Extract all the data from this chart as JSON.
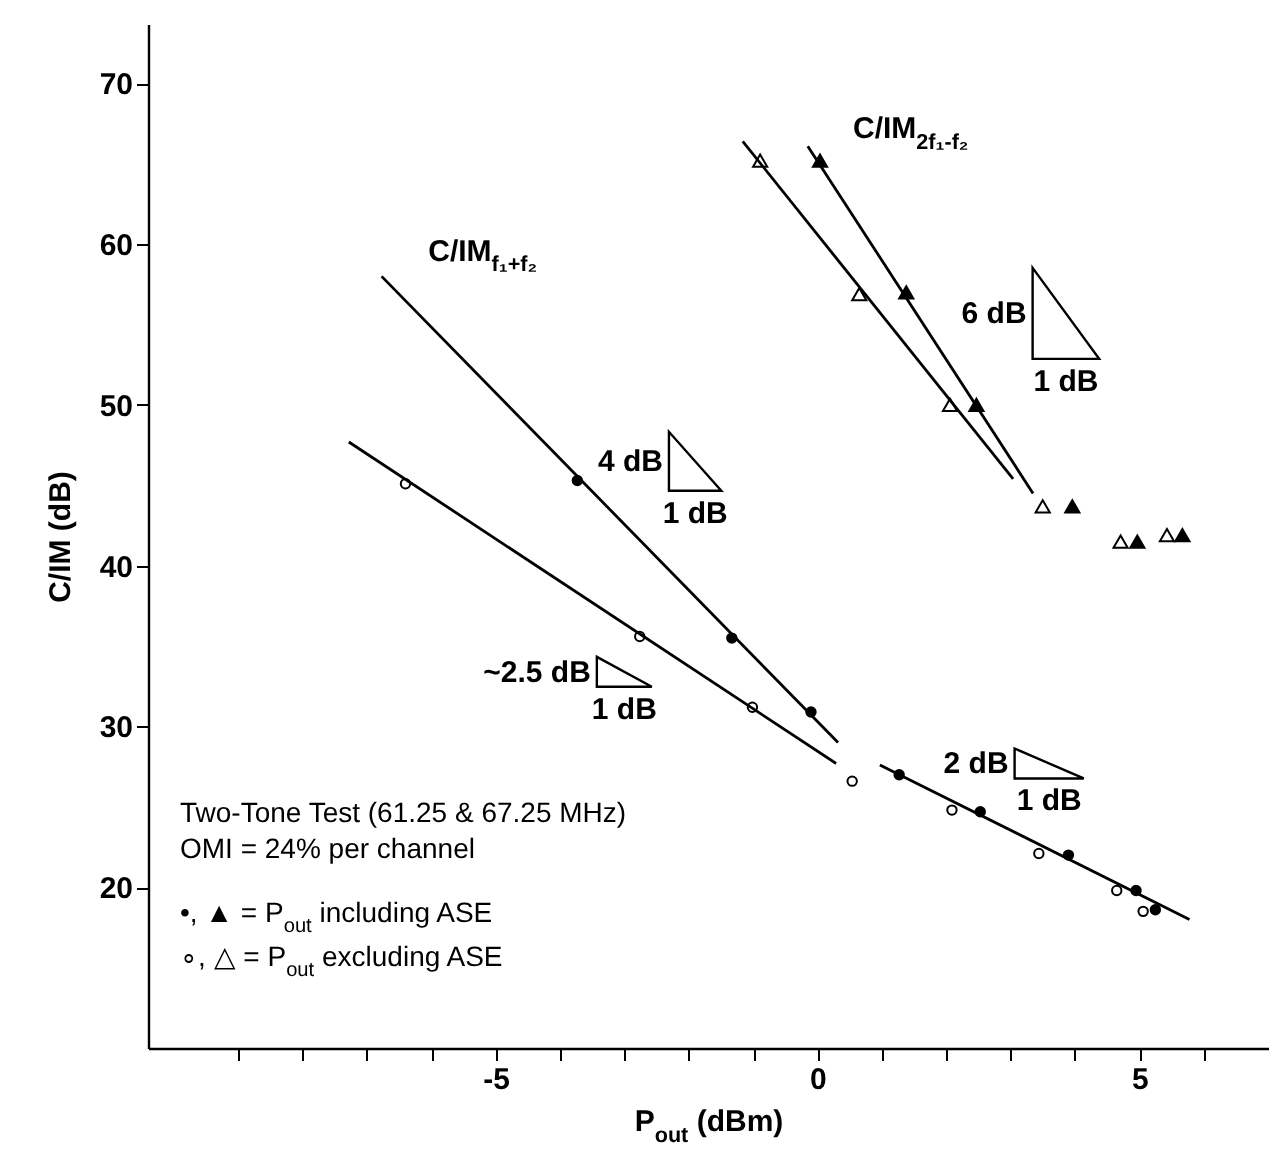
{
  "chart_data": {
    "type": "scatter",
    "xlabel": "P$_{out}$ (dBm)",
    "ylabel": "C/IM (dB)",
    "xlim": [
      -10.4,
      7
    ],
    "ylim": [
      10,
      73.7
    ],
    "xticks": [
      {
        "value": -9,
        "label": null
      },
      {
        "value": -8,
        "label": null
      },
      {
        "value": -7,
        "label": null
      },
      {
        "value": -6,
        "label": null
      },
      -5,
      {
        "value": -4,
        "label": null
      },
      {
        "value": -3,
        "label": null
      },
      {
        "value": -2,
        "label": null
      },
      {
        "value": -1,
        "label": null
      },
      0,
      {
        "value": 1,
        "label": null
      },
      {
        "value": 2,
        "label": null
      },
      {
        "value": 3,
        "label": null
      },
      {
        "value": 4,
        "label": null
      },
      5,
      {
        "value": 6,
        "label": null
      }
    ],
    "yticks": [
      20,
      30,
      40,
      50,
      60,
      70
    ],
    "grid": false,
    "series": [
      {
        "type": "scatter",
        "marker": "circle",
        "color": "#000000",
        "x": [
          -3.73,
          -1.33,
          -0.1,
          1.27,
          2.53,
          3.9,
          4.95,
          5.25
        ],
        "values": [
          45.3,
          35.5,
          30.9,
          27.0,
          24.7,
          22.0,
          19.8,
          18.6
        ]
      },
      {
        "type": "scatter",
        "marker": "circle",
        "color": "#ffffff",
        "x": [
          -6.4,
          -2.76,
          -1.01,
          0.54,
          2.09,
          3.44,
          4.65,
          5.06
        ],
        "values": [
          45.1,
          35.6,
          31.2,
          26.6,
          24.8,
          22.1,
          19.8,
          18.5
        ]
      },
      {
        "type": "scatter",
        "marker": "triangle",
        "color": "#000000",
        "x": [
          0.04,
          1.38,
          2.47,
          3.96,
          4.97,
          5.67
        ],
        "values": [
          65.2,
          57.0,
          50.0,
          43.7,
          41.5,
          41.9
        ]
      },
      {
        "type": "scatter",
        "marker": "triangle",
        "color": "#ffffff",
        "x": [
          -0.89,
          0.65,
          2.06,
          3.5,
          4.71,
          5.43
        ],
        "values": [
          65.2,
          56.9,
          50.0,
          43.7,
          41.5,
          41.9
        ]
      },
      {
        "type": "line",
        "color": "#000000",
        "x": [
          -6.77,
          0.32
        ],
        "values": [
          58.0,
          29.0
        ]
      },
      {
        "type": "line",
        "color": "#000000",
        "x": [
          -7.28,
          0.29
        ],
        "values": [
          47.7,
          27.7
        ]
      },
      {
        "type": "line",
        "color": "#000000",
        "x": [
          0.97,
          5.78
        ],
        "values": [
          27.6,
          18.0
        ]
      },
      {
        "type": "line",
        "color": "#000000",
        "x": [
          -0.15,
          3.35
        ],
        "values": [
          66.1,
          44.5
        ]
      },
      {
        "type": "line",
        "color": "#000000",
        "x": [
          -1.16,
          3.04
        ],
        "values": [
          66.4,
          45.4
        ]
      }
    ],
    "annotations": [
      "C/IM$_{f₁+f₂}$",
      "C/IM$_{2f₁-f₂}$",
      "4 dB",
      "1 dB",
      "6 dB",
      "1 dB",
      "~2.5 dB",
      "1 dB",
      "2 dB",
      "1 dB",
      "Two-Tone Test (61.25 & 67.25 MHz)",
      "OMI = 24% per channel",
      "•, ▲ = P$_{out}$ including ASE",
      "∘, △ = P$_{out}$ excluding ASE"
    ]
  }
}
